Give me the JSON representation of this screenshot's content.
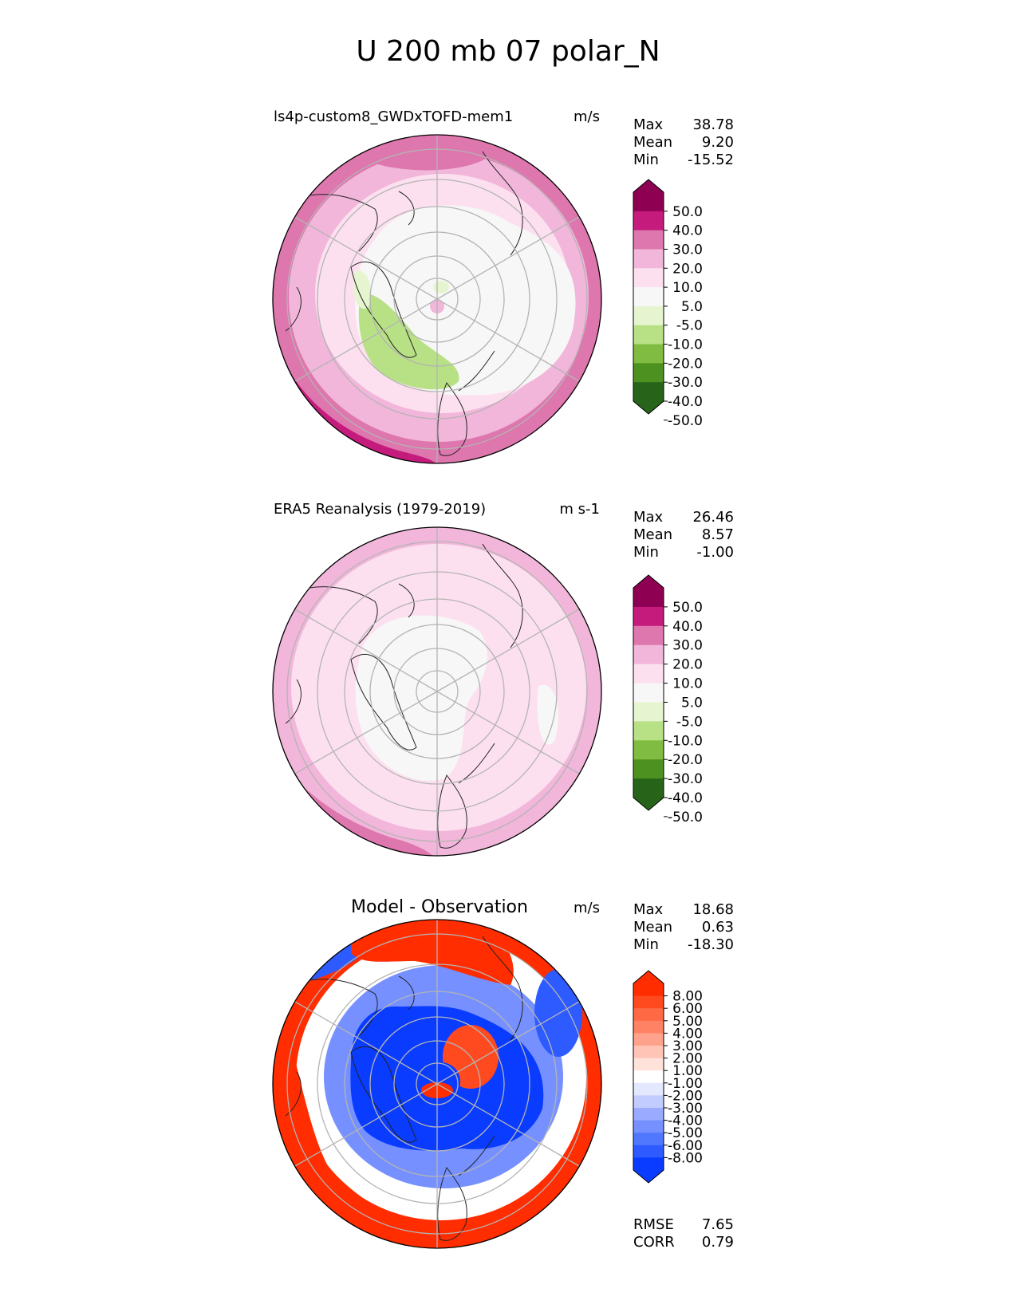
{
  "figure": {
    "title": "U 200 mb 07 polar_N"
  },
  "palettes": {
    "sequential": [
      "#276419",
      "#4d9221",
      "#7fbc41",
      "#b8e186",
      "#e6f5d0",
      "#f7f7f7",
      "#fde0ef",
      "#f1b6da",
      "#de77ae",
      "#c51b7d",
      "#8e0152"
    ],
    "diverging": [
      "#0a3cff",
      "#2d5bff",
      "#5078ff",
      "#7691ff",
      "#9aabff",
      "#c2ccff",
      "#e4e8ff",
      "#ffffff",
      "#ffe2da",
      "#ffc4b5",
      "#ffa28c",
      "#ff8264",
      "#ff6a45",
      "#ff4a1f",
      "#ff2d00"
    ]
  },
  "chart_data": [
    {
      "type": "contour-map",
      "projection": "north-polar-stereographic",
      "title": "ls4p-custom8_GWDxTOFD-mem1",
      "units": "m/s",
      "stats": [
        {
          "label": "Max",
          "value": "38.78"
        },
        {
          "label": "Mean",
          "value": "9.20"
        },
        {
          "label": "Min",
          "value": "-15.52"
        }
      ],
      "colorbar": {
        "palette": "sequential",
        "extend": "both",
        "ticks": [
          "50.0",
          "40.0",
          "30.0",
          "20.0",
          "10.0",
          "5.0",
          "-5.0",
          "-10.0",
          "-20.0",
          "-30.0",
          "-40.0",
          "-50.0"
        ]
      },
      "field": [
        {
          "region": "subtropical-ring",
          "level": 8
        },
        {
          "region": "midlatitude-ring",
          "level": 7
        },
        {
          "region": "high-latitude-cap",
          "level": 5
        },
        {
          "region": "north-atlantic-greenland",
          "level": 3
        },
        {
          "region": "europe-jet-core",
          "level": 9
        },
        {
          "region": "north-pole",
          "level": 6
        }
      ]
    },
    {
      "type": "contour-map",
      "projection": "north-polar-stereographic",
      "title": "ERA5 Reanalysis (1979-2019)",
      "units": "m s-1",
      "stats": [
        {
          "label": "Max",
          "value": "26.46"
        },
        {
          "label": "Mean",
          "value": "8.57"
        },
        {
          "label": "Min",
          "value": "-1.00"
        }
      ],
      "colorbar": {
        "palette": "sequential",
        "extend": "both",
        "ticks": [
          "50.0",
          "40.0",
          "30.0",
          "20.0",
          "10.0",
          "5.0",
          "-5.0",
          "-10.0",
          "-20.0",
          "-30.0",
          "-40.0",
          "-50.0"
        ]
      },
      "field": [
        {
          "region": "subtropical-ring",
          "level": 7
        },
        {
          "region": "midlatitude-ring",
          "level": 6
        },
        {
          "region": "high-latitude-cap",
          "level": 5
        },
        {
          "region": "europe-jet-core",
          "level": 7
        },
        {
          "region": "north-atlantic-greenland",
          "level": 5
        }
      ]
    },
    {
      "type": "contour-map",
      "projection": "north-polar-stereographic",
      "title": "Model - Observation",
      "units": "m/s",
      "stats": [
        {
          "label": "Max",
          "value": "18.68"
        },
        {
          "label": "Mean",
          "value": "0.63"
        },
        {
          "label": "Min",
          "value": "-18.30"
        }
      ],
      "colorbar": {
        "palette": "diverging",
        "extend": "both",
        "ticks": [
          "8.00",
          "6.00",
          "5.00",
          "4.00",
          "3.00",
          "2.00",
          "1.00",
          "-1.00",
          "-2.00",
          "-3.00",
          "-4.00",
          "-5.00",
          "-6.00",
          "-8.00"
        ]
      },
      "footer_stats": [
        {
          "label": "RMSE",
          "value": "7.65"
        },
        {
          "label": "CORR",
          "value": "0.79"
        }
      ],
      "field": [
        {
          "region": "subtropical-ring",
          "sign": "positive"
        },
        {
          "region": "polar-ring",
          "sign": "negative"
        },
        {
          "region": "north-pole",
          "sign": "positive"
        },
        {
          "region": "north-pacific",
          "sign": "negative"
        },
        {
          "region": "north-america-lobe",
          "sign": "positive"
        }
      ]
    }
  ]
}
